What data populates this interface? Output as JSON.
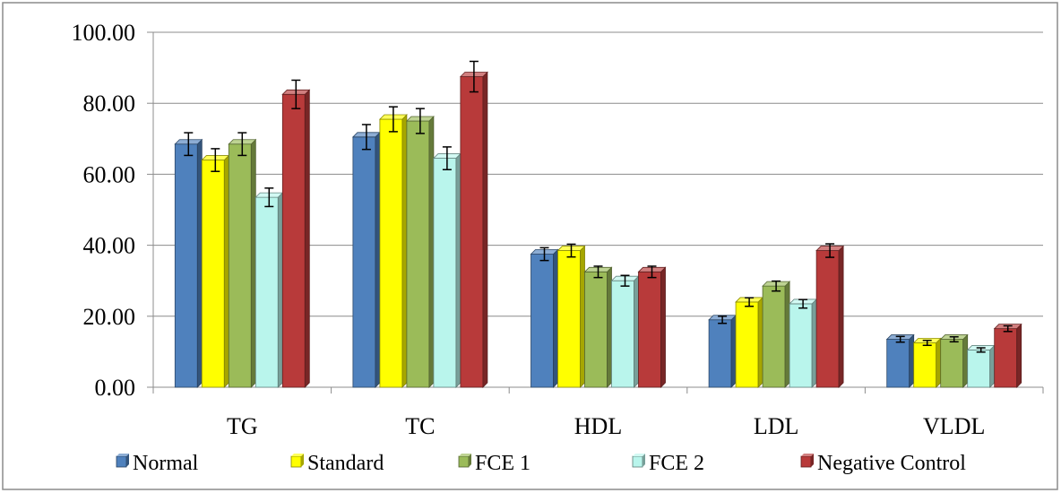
{
  "chart_data": {
    "type": "bar",
    "style": "3d-clustered-column-with-error-bars",
    "categories": [
      "TG",
      "TC",
      "HDL",
      "LDL",
      "VLDL"
    ],
    "series": [
      {
        "name": "Normal",
        "values": [
          68.5,
          70.5,
          37.5,
          19.0,
          13.5
        ],
        "errors": [
          3.2,
          3.5,
          1.8,
          1.0,
          0.8
        ],
        "color": "#4F81BD"
      },
      {
        "name": "Standard",
        "values": [
          64.0,
          75.5,
          38.5,
          24.0,
          12.5
        ],
        "errors": [
          3.2,
          3.5,
          1.8,
          1.2,
          0.7
        ],
        "color": "#FFFF00"
      },
      {
        "name": "FCE 1",
        "values": [
          68.5,
          75.0,
          32.5,
          28.5,
          13.5
        ],
        "errors": [
          3.2,
          3.5,
          1.6,
          1.4,
          0.7
        ],
        "color": "#9BBB59"
      },
      {
        "name": "FCE 2",
        "values": [
          53.5,
          64.5,
          30.0,
          23.5,
          10.5
        ],
        "errors": [
          2.6,
          3.2,
          1.5,
          1.2,
          0.6
        ],
        "color": "#B9F5EC"
      },
      {
        "name": "Negative Control",
        "values": [
          82.5,
          87.5,
          32.5,
          38.5,
          16.5
        ],
        "errors": [
          4.0,
          4.3,
          1.6,
          1.9,
          0.8
        ],
        "color": "#B83A3A"
      }
    ],
    "ylim": [
      0,
      100
    ],
    "yticks": [
      "0.00",
      "20.00",
      "40.00",
      "60.00",
      "80.00",
      "100.00"
    ],
    "ytick_values": [
      0,
      20,
      40,
      60,
      80,
      100
    ],
    "grid": true,
    "legend_position": "bottom",
    "title": "",
    "xlabel": "",
    "ylabel": ""
  }
}
